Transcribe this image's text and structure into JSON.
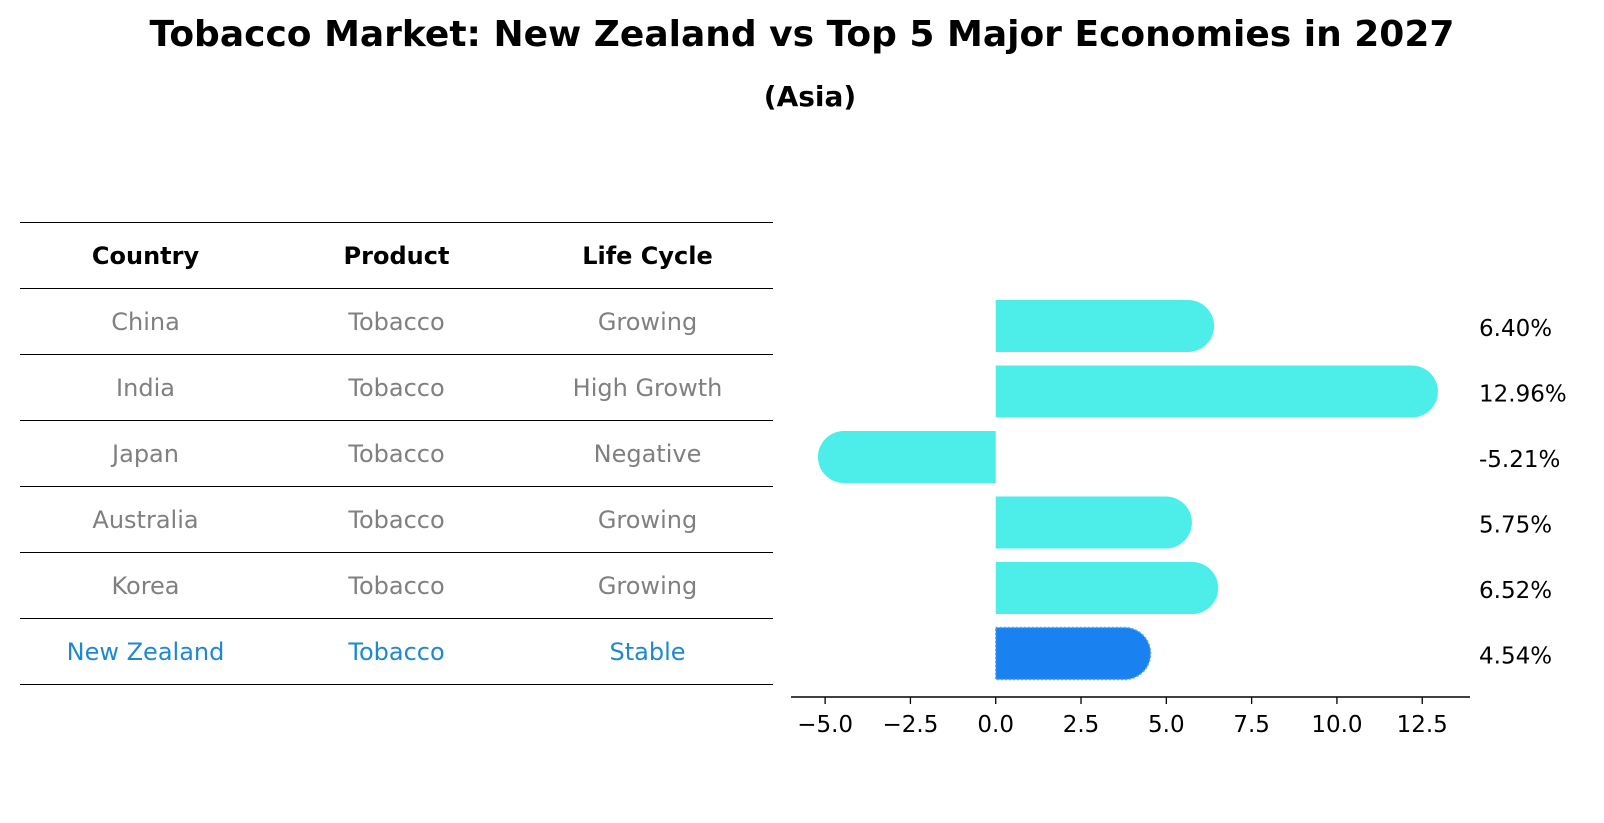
{
  "title": "Tobacco Market: New Zealand vs Top 5 Major Economies in 2027",
  "subtitle": "(Asia)",
  "table": {
    "headers": [
      "Country",
      "Product",
      "Life Cycle"
    ],
    "rows": [
      [
        "China",
        "Tobacco",
        "Growing"
      ],
      [
        "India",
        "Tobacco",
        "High Growth"
      ],
      [
        "Japan",
        "Tobacco",
        "Negative"
      ],
      [
        "Australia",
        "Tobacco",
        "Growing"
      ],
      [
        "Korea",
        "Tobacco",
        "Growing"
      ],
      [
        "New Zealand",
        "Tobacco",
        "Stable"
      ]
    ],
    "highlight_row": 5
  },
  "colors": {
    "bar": "#4DEEEA",
    "highlight_bar": "#1A82F0",
    "highlight_text": "#1E88D4",
    "muted_text": "#808080"
  },
  "chart_data": {
    "type": "bar",
    "orientation": "horizontal",
    "categories": [
      "China",
      "India",
      "Japan",
      "Australia",
      "Korea",
      "New Zealand"
    ],
    "values": [
      6.4,
      12.96,
      -5.21,
      5.75,
      6.52,
      4.54
    ],
    "value_labels": [
      "6.40%",
      "12.96%",
      "-5.21%",
      "5.75%",
      "6.52%",
      "4.54%"
    ],
    "xlim": [
      -6.0,
      13.9
    ],
    "xticks": [
      -5.0,
      -2.5,
      0.0,
      2.5,
      5.0,
      7.5,
      10.0,
      12.5
    ],
    "xtick_labels": [
      "−5.0",
      "−2.5",
      "0.0",
      "2.5",
      "5.0",
      "7.5",
      "10.0",
      "12.5"
    ],
    "highlight_index": 5,
    "grid": false
  }
}
